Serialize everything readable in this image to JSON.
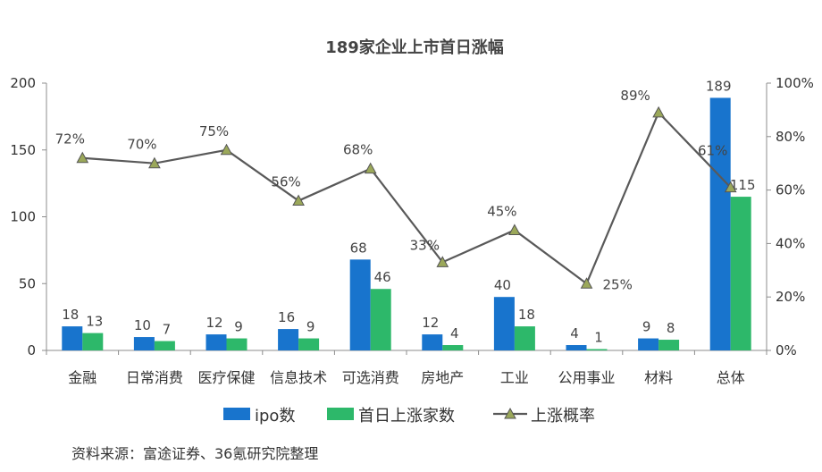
{
  "chart_data": {
    "type": "bar",
    "title": "189家企业上市首日涨幅",
    "categories": [
      "金融",
      "日常消费",
      "医疗保健",
      "信息技术",
      "可选消费",
      "房地产",
      "工业",
      "公用事业",
      "材料",
      "总体"
    ],
    "series": [
      {
        "name": "ipo数",
        "type": "bar",
        "axis": "left",
        "color": "#1874CD",
        "values": [
          18,
          10,
          12,
          16,
          68,
          12,
          40,
          4,
          9,
          189
        ]
      },
      {
        "name": "首日上涨家数",
        "type": "bar",
        "axis": "left",
        "color": "#2DB86A",
        "values": [
          13,
          7,
          9,
          9,
          46,
          4,
          18,
          1,
          8,
          115
        ]
      },
      {
        "name": "上涨概率",
        "type": "line",
        "axis": "right",
        "color": "#595959",
        "marker": "triangle",
        "marker_color": "#9BA85A",
        "values": [
          72,
          70,
          75,
          56,
          68,
          33,
          45,
          25,
          89,
          61
        ],
        "labels": [
          "72%",
          "70%",
          "75%",
          "56%",
          "68%",
          "33%",
          "45%",
          "25%",
          "89%",
          "61%"
        ]
      }
    ],
    "y_left": {
      "ylim": [
        0,
        200
      ],
      "ticks": [
        "0",
        "50",
        "100",
        "150",
        "200"
      ]
    },
    "y_right": {
      "ylim": [
        0,
        100
      ],
      "ticks": [
        "0%",
        "20%",
        "40%",
        "60%",
        "80%",
        "100%"
      ]
    },
    "legend": {
      "position": "bottom",
      "items": [
        "ipo数",
        "首日上涨家数",
        "上涨概率"
      ]
    },
    "grid": false
  },
  "source_note": "资料来源：富途证券、36氪研究院整理"
}
